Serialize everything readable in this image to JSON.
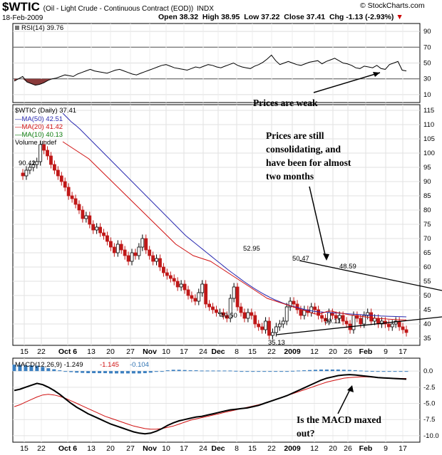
{
  "header": {
    "symbol": "$WTIC",
    "name": "(Oil - Light Crude - Continuous Contract (EOD))",
    "exchange": "INDX",
    "date": "18-Feb-2009",
    "open": "Open 38.32",
    "high": "High 38.95",
    "low": "Low 37.22",
    "close": "Close 37.41",
    "change": "Chg -1.13 (-2.93%)",
    "watermark": "© StockCharts.com"
  },
  "chart_data": [
    {
      "type": "line",
      "panel": "rsi",
      "legend": "RSI(14) 39.76",
      "ylim": [
        0,
        100
      ],
      "yticks": [
        10,
        30,
        50,
        70,
        90
      ],
      "reference_lines": [
        30,
        70
      ],
      "values": [
        27,
        30,
        33,
        26,
        24,
        22,
        23,
        25,
        28,
        30,
        31,
        33,
        35,
        34,
        33,
        36,
        38,
        40,
        42,
        40,
        39,
        38,
        37,
        39,
        41,
        42,
        40,
        38,
        36,
        35,
        37,
        39,
        41,
        43,
        45,
        47,
        48,
        46,
        44,
        43,
        42,
        41,
        43,
        45,
        44,
        46,
        48,
        47,
        45,
        44,
        46,
        48,
        50,
        47,
        45,
        44,
        43,
        46,
        48,
        51,
        55,
        60,
        53,
        48,
        50,
        52,
        50,
        48,
        47,
        49,
        51,
        52,
        53,
        49,
        52,
        54,
        56,
        53,
        50,
        49,
        47,
        44,
        43,
        46,
        45,
        44,
        47,
        43,
        42,
        48,
        50,
        52,
        41,
        40
      ]
    },
    {
      "type": "candlestick",
      "panel": "price",
      "legend": [
        "$WTIC (Daily) 37.41",
        "MA(50) 42.51",
        "MA(20) 41.42",
        "MA(10) 40.13",
        "Volume undef"
      ],
      "ylim": [
        32.5,
        117
      ],
      "yticks": [
        35,
        40,
        45,
        50,
        55,
        60,
        65,
        70,
        75,
        80,
        85,
        90,
        95,
        100,
        105,
        110,
        115
      ],
      "x_labels": [
        "15",
        "22",
        "Oct 6",
        "13",
        "20",
        "27",
        "Nov",
        "10",
        "17",
        "24",
        "Dec",
        "8",
        "15",
        "22",
        "2009",
        "12",
        "20",
        "26",
        "Feb",
        "9",
        "17"
      ],
      "close": [
        92,
        94,
        95,
        96,
        97,
        103,
        101,
        99,
        96,
        94,
        92,
        90,
        88,
        85,
        84,
        82,
        80,
        77,
        78,
        75,
        73,
        74,
        72,
        71,
        69,
        67,
        65,
        68,
        66,
        64,
        62,
        65,
        64,
        67,
        70,
        66,
        64,
        62,
        63,
        60,
        58,
        57,
        56,
        55,
        53,
        54,
        52,
        50,
        49,
        48,
        51,
        54,
        47,
        46,
        45,
        44,
        44,
        43,
        42,
        49,
        53,
        46,
        44,
        42,
        44,
        43,
        40,
        39,
        38,
        41,
        36,
        37,
        39,
        40,
        41,
        46,
        48,
        47,
        45,
        43,
        45,
        44,
        46,
        45,
        43,
        42,
        41,
        44,
        43,
        42,
        43,
        41,
        40,
        38,
        43,
        42,
        40,
        43,
        44,
        41,
        42,
        40,
        41,
        40,
        39,
        40,
        41,
        39,
        38,
        37
      ],
      "ma50": [
        114,
        112.5,
        111,
        109.8,
        108.5,
        107,
        105.5,
        104,
        102.5,
        101,
        99.5,
        98,
        96.5,
        95,
        93.5,
        92,
        90.5,
        89,
        87.5,
        86,
        84.5,
        83,
        81.5,
        80,
        78.5,
        77,
        75.5,
        74,
        72.5,
        71,
        69.8,
        68.6,
        67.4,
        66.2,
        65,
        63.8,
        62.6,
        61.4,
        60.2,
        59,
        57.9,
        56.8,
        55.7,
        54.6,
        53.6,
        52.6,
        51.7,
        50.8,
        50,
        49.2,
        48.5,
        47.9,
        47.3,
        46.8,
        46.3,
        45.9,
        45.5,
        45.1,
        44.8,
        44.5,
        44.3,
        44.2,
        44.1,
        44,
        43.9,
        43.8,
        43.7,
        43.6,
        43.5,
        43.4,
        43.3,
        43.2,
        43.1,
        43,
        42.9,
        42.8,
        42.75,
        42.7,
        42.65,
        42.6,
        42.55,
        42.51
      ],
      "ma20": [
        104,
        103,
        102,
        101,
        100,
        99,
        98,
        96.5,
        95,
        93.5,
        92,
        90.5,
        89,
        87.5,
        86,
        84.5,
        83,
        81.5,
        80,
        78.5,
        77,
        75.5,
        74,
        72.5,
        71,
        69.5,
        68,
        67,
        66,
        65,
        64,
        63.5,
        63,
        62.5,
        62,
        61,
        60,
        59,
        58,
        57,
        56,
        55,
        54,
        53,
        52,
        51,
        50,
        49,
        48.5,
        48,
        47.5,
        47,
        46.5,
        46,
        45.5,
        45,
        44.5,
        44,
        43.5,
        43.5,
        44,
        44.5,
        44.5,
        44,
        43.8,
        43.5,
        43.2,
        43,
        42.8,
        42.6,
        42.4,
        42.2,
        42,
        41.9,
        41.8,
        41.7,
        41.6,
        41.5,
        41.45,
        41.42
      ]
    },
    {
      "type": "line",
      "panel": "macd",
      "legend": [
        "MACD(12,26,9) -1.249",
        "-1.145",
        "-0.104"
      ],
      "ylim": [
        -11,
        2
      ],
      "yticks": [
        0.0,
        -2.5,
        -5.0,
        -7.5,
        -10.0
      ],
      "macd": [
        -3,
        -2.8,
        -2.5,
        -2.2,
        -1.9,
        -2.1,
        -2.5,
        -3,
        -3.6,
        -4.3,
        -5,
        -5.6,
        -6.1,
        -6.6,
        -7,
        -7.4,
        -7.8,
        -8.2,
        -8.5,
        -8.8,
        -9.1,
        -9.4,
        -9.6,
        -9.7,
        -9.6,
        -9.3,
        -8.9,
        -8.4,
        -8.0,
        -7.7,
        -7.5,
        -7.3,
        -7.1,
        -7.0,
        -6.8,
        -6.6,
        -6.4,
        -6.2,
        -6.0,
        -5.9,
        -5.8,
        -5.7,
        -5.5,
        -5.3,
        -5.0,
        -4.7,
        -4.4,
        -4.1,
        -3.8,
        -3.4,
        -3.0,
        -2.6,
        -2.2,
        -1.8,
        -1.4,
        -1.1,
        -0.9,
        -0.7,
        -0.6,
        -0.55,
        -0.6,
        -0.7,
        -0.8,
        -0.9,
        -1.0,
        -1.05,
        -1.1,
        -1.15,
        -1.2,
        -1.249
      ],
      "signal": [
        -5.5,
        -5.2,
        -4.8,
        -4.4,
        -4,
        -3.7,
        -3.6,
        -3.7,
        -3.9,
        -4.2,
        -4.6,
        -5,
        -5.4,
        -5.8,
        -6.2,
        -6.6,
        -7,
        -7.3,
        -7.6,
        -7.9,
        -8.2,
        -8.5,
        -8.7,
        -8.9,
        -9.0,
        -9.0,
        -8.9,
        -8.7,
        -8.5,
        -8.2,
        -7.9,
        -7.6,
        -7.4,
        -7.2,
        -7.0,
        -6.8,
        -6.6,
        -6.4,
        -6.2,
        -6.0,
        -5.8,
        -5.6,
        -5.4,
        -5.2,
        -5.0,
        -4.7,
        -4.4,
        -4.1,
        -3.8,
        -3.5,
        -3.2,
        -2.9,
        -2.6,
        -2.3,
        -2.0,
        -1.7,
        -1.5,
        -1.3,
        -1.1,
        -1.0,
        -0.95,
        -0.9,
        -0.9,
        -0.95,
        -1.0,
        -1.05,
        -1.1,
        -1.12,
        -1.14,
        -1.145
      ]
    }
  ],
  "price_labels": [
    "90.42",
    "40.50",
    "52.95",
    "35.13",
    "50.47",
    "48.59",
    "39.11"
  ],
  "annotations": {
    "rsi": "Prices are weak",
    "price_line1": "Prices are still",
    "price_line2": "consolidating, and",
    "price_line3": "have been for almost",
    "price_line4": "two months",
    "macd_line1": "Is the MACD maxed",
    "macd_line2": "out?"
  }
}
